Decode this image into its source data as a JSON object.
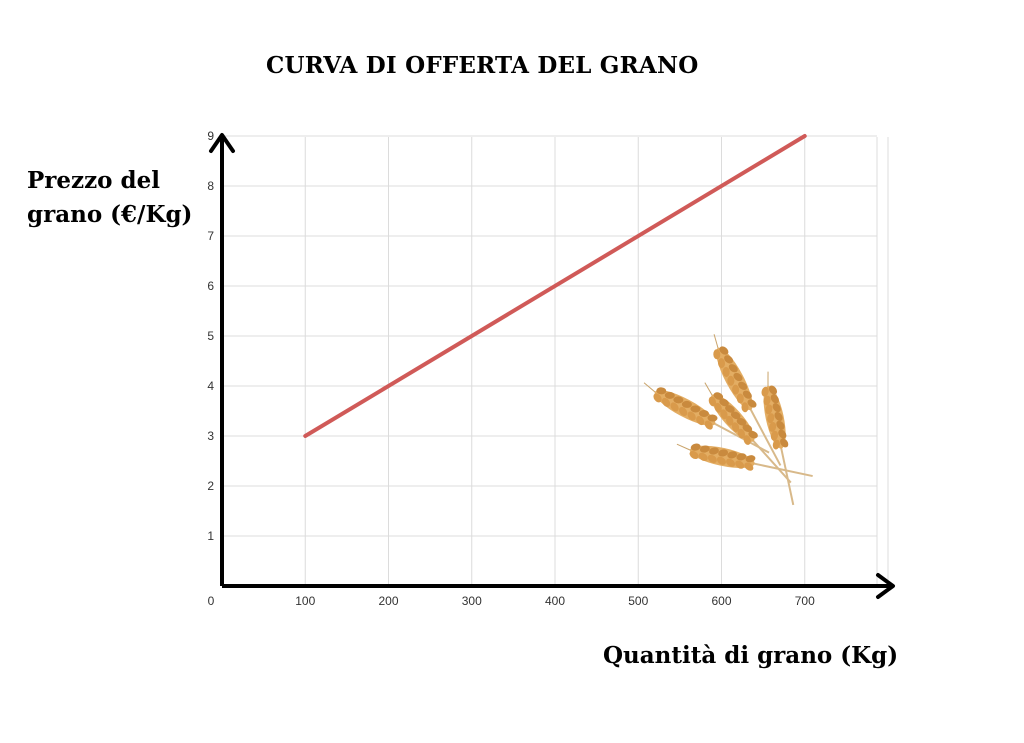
{
  "chart_data": {
    "type": "line",
    "title": "CURVA DI OFFERTA DEL GRANO",
    "ylabel_lines": [
      "Prezzo del",
      "grano (€/Kg)"
    ],
    "xlabel": "Quantità di grano (Kg)",
    "x_ticks": [
      "0",
      "100",
      "200",
      "300",
      "400",
      "500",
      "600",
      "700"
    ],
    "y_ticks": [
      "1",
      "2",
      "3",
      "4",
      "5",
      "6",
      "7",
      "8",
      "9"
    ],
    "xlim": [
      0,
      800
    ],
    "ylim": [
      0,
      9
    ],
    "grid": true,
    "series": [
      {
        "x": [
          100,
          700
        ],
        "y": [
          3,
          9
        ],
        "color": "#d05a58"
      }
    ],
    "decoration": "wheat-ears-image"
  }
}
